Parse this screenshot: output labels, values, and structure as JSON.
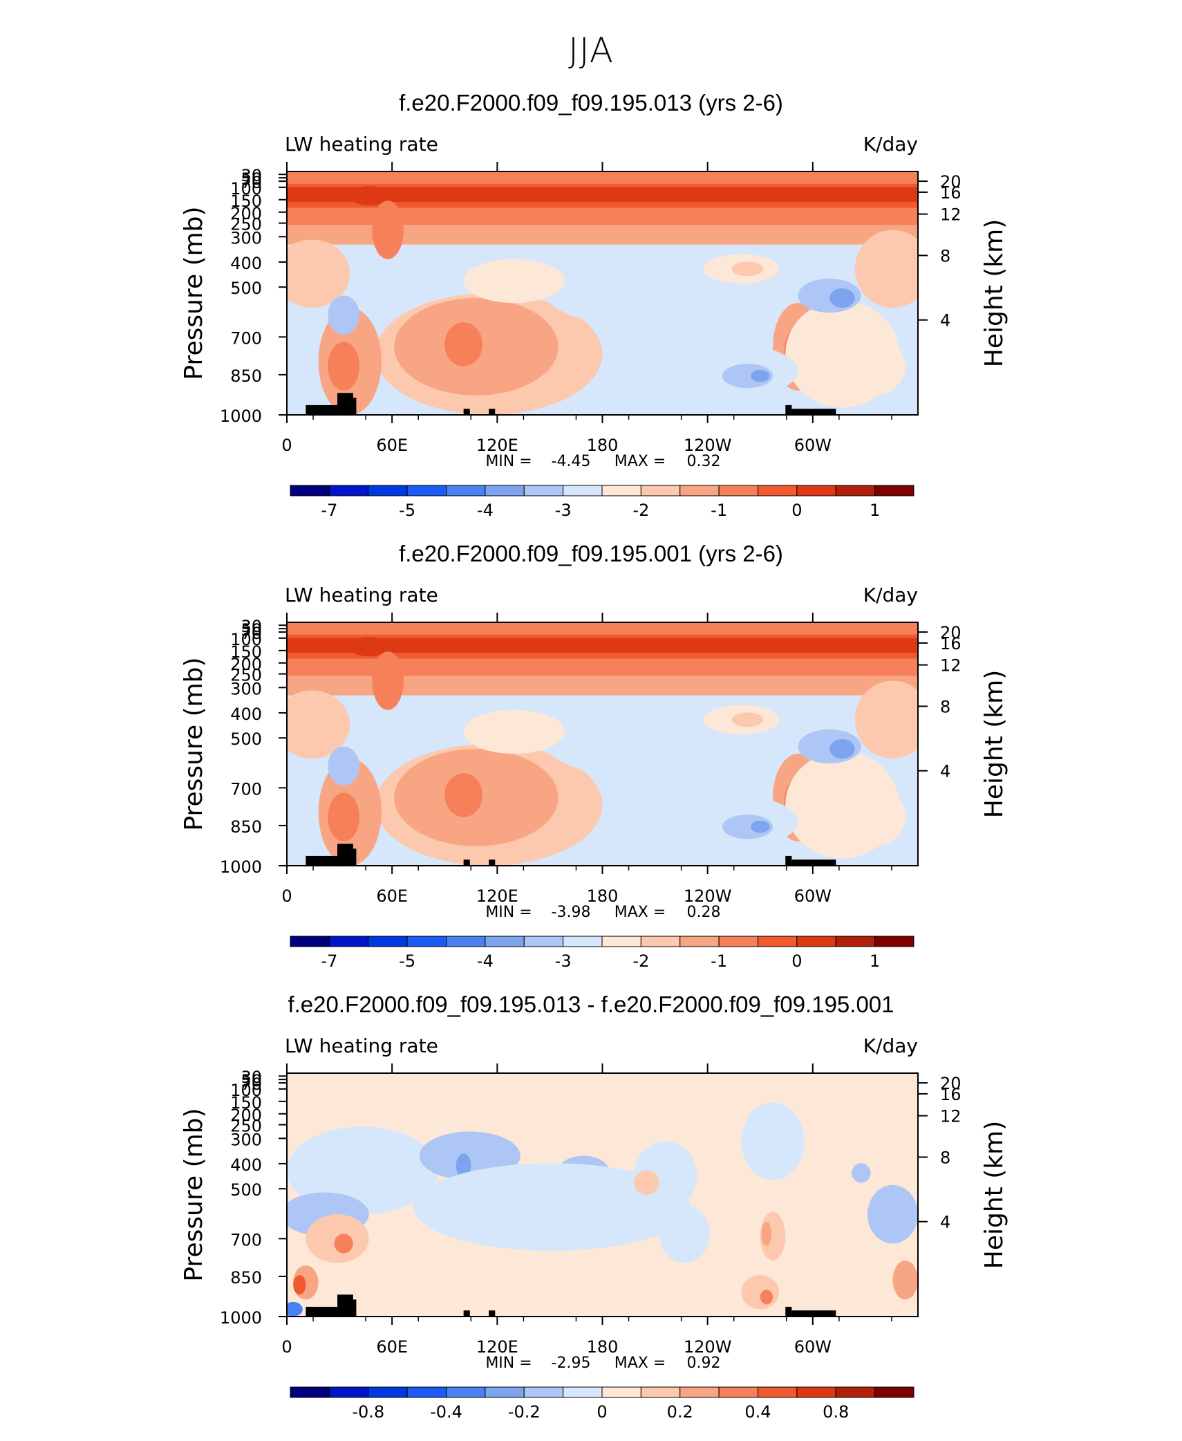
{
  "page_title": "JJA",
  "chart_data": [
    {
      "type": "heatmap",
      "title": "f.e20.F2000.f09_f09.195.013 (yrs 2-6)",
      "subtitle_left": "LW heating rate",
      "subtitle_right": "K/day",
      "ylabel_left": "Pressure (mb)",
      "ylabel_right": "Height (km)",
      "x_ticks": [
        "0",
        "60E",
        "120E",
        "180",
        "120W",
        "60W"
      ],
      "y_ticks_left": [
        "30",
        "50",
        "70",
        "100",
        "150",
        "200",
        "250",
        "300",
        "400",
        "500",
        "700",
        "850",
        "1000"
      ],
      "y_ticks_right": [
        "20",
        "16",
        "12",
        "8",
        "4"
      ],
      "stats": {
        "min_label": "MIN =",
        "min": "-4.45",
        "max_label": "MAX =",
        "max": "0.32"
      },
      "colorbar_labels": [
        "-7",
        "-5",
        "-4",
        "-3",
        "-2",
        "-1",
        "0",
        "1"
      ],
      "variant": "full"
    },
    {
      "type": "heatmap",
      "title": "f.e20.F2000.f09_f09.195.001 (yrs 2-6)",
      "subtitle_left": "LW heating rate",
      "subtitle_right": "K/day",
      "ylabel_left": "Pressure (mb)",
      "ylabel_right": "Height (km)",
      "x_ticks": [
        "0",
        "60E",
        "120E",
        "180",
        "120W",
        "60W"
      ],
      "y_ticks_left": [
        "30",
        "50",
        "70",
        "100",
        "150",
        "200",
        "250",
        "300",
        "400",
        "500",
        "700",
        "850",
        "1000"
      ],
      "y_ticks_right": [
        "20",
        "16",
        "12",
        "8",
        "4"
      ],
      "stats": {
        "min_label": "MIN =",
        "min": "-3.98",
        "max_label": "MAX =",
        "max": "0.28"
      },
      "colorbar_labels": [
        "-7",
        "-5",
        "-4",
        "-3",
        "-2",
        "-1",
        "0",
        "1"
      ],
      "variant": "full"
    },
    {
      "type": "heatmap",
      "title": "f.e20.F2000.f09_f09.195.013 - f.e20.F2000.f09_f09.195.001",
      "subtitle_left": "LW heating rate",
      "subtitle_right": "K/day",
      "ylabel_left": "Pressure (mb)",
      "ylabel_right": "Height (km)",
      "x_ticks": [
        "0",
        "60E",
        "120E",
        "180",
        "120W",
        "60W"
      ],
      "y_ticks_left": [
        "30",
        "50",
        "70",
        "100",
        "150",
        "200",
        "250",
        "300",
        "400",
        "500",
        "700",
        "850",
        "1000"
      ],
      "y_ticks_right": [
        "20",
        "16",
        "12",
        "8",
        "4"
      ],
      "stats": {
        "min_label": "MIN =",
        "min": "-2.95",
        "max_label": "MAX =",
        "max": "0.92"
      },
      "colorbar_labels": [
        "-0.8",
        "-0.4",
        "-0.2",
        "0",
        "0.2",
        "0.4",
        "0.8"
      ],
      "variant": "diff"
    }
  ],
  "colors": {
    "scale": [
      "#00007f",
      "#0016c8",
      "#0038e2",
      "#1a5cf5",
      "#4a81f2",
      "#7ea4f0",
      "#adc6f5",
      "#d6e7fb",
      "#fde8d8",
      "#fcc9ae",
      "#f8a584",
      "#f5805a",
      "#f05a2e",
      "#dd3a14",
      "#b0200c",
      "#7f0000"
    ],
    "terrain": "#000000"
  }
}
